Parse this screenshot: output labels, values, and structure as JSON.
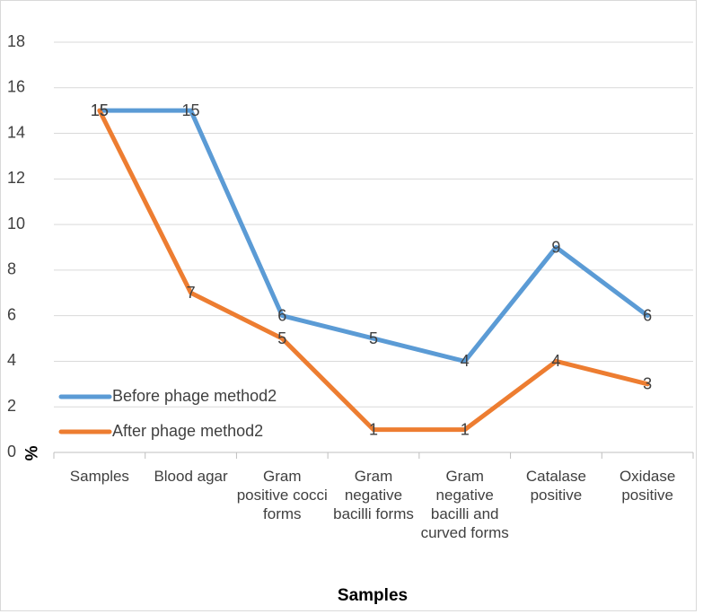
{
  "chart_data": {
    "type": "line",
    "x_label": "Samples",
    "y_label": "%",
    "categories": [
      "Samples",
      "Blood agar",
      "Gram positive cocci forms",
      "Gram negative bacilli forms",
      "Gram negative bacilli and curved forms",
      "Catalase positive",
      "Oxidase positive"
    ],
    "series": [
      {
        "name": "Before phage method2",
        "color": "#5b9bd5",
        "values": [
          15,
          15,
          6,
          5,
          4,
          9,
          6
        ]
      },
      {
        "name": "After phage method2",
        "color": "#ed7d31",
        "values": [
          15,
          7,
          5,
          1,
          1,
          4,
          3
        ]
      }
    ],
    "ylim": [
      0,
      18
    ],
    "yticks": [
      0,
      2,
      4,
      6,
      8,
      10,
      12,
      14,
      16,
      18
    ],
    "grid": true,
    "legend": "lower left",
    "data_labels": true
  }
}
